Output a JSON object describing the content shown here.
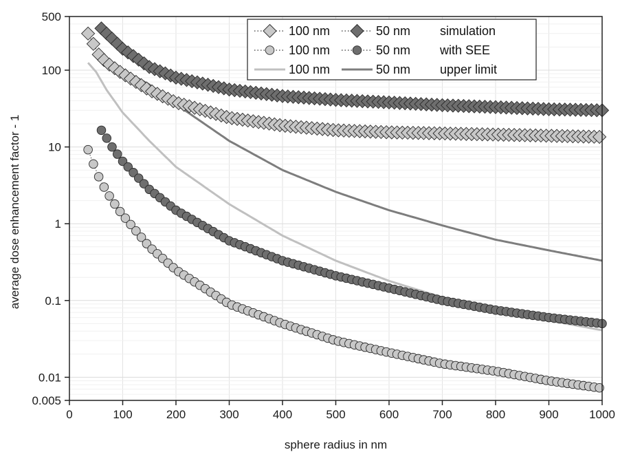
{
  "chart_data": {
    "type": "scatter",
    "xlabel": "sphere radius in nm",
    "ylabel": "average dose enhancement factor - 1",
    "xlim": [
      0,
      1000
    ],
    "ylim": [
      0.005,
      500
    ],
    "yscale": "log",
    "x_ticks": [
      0,
      100,
      200,
      300,
      400,
      500,
      600,
      700,
      800,
      900,
      1000
    ],
    "y_ticks": [
      0.005,
      0.01,
      0.1,
      1,
      10,
      100,
      500
    ],
    "y_tick_labels": [
      "0.005",
      "0.01",
      "0.1",
      "1",
      "10",
      "100",
      "500"
    ],
    "grid": true,
    "legend_position": "top-right",
    "legend_groups": [
      "simulation",
      "with SEE",
      "upper limit"
    ],
    "series": [
      {
        "name": "100 nm",
        "group": "simulation",
        "marker": "diamond",
        "style": "dotted-markers",
        "color": "#c8c8c8",
        "x_start": 35,
        "x_step": 10,
        "x_end": 1000,
        "anchors": [
          [
            35,
            300
          ],
          [
            45,
            220
          ],
          [
            55,
            160
          ],
          [
            70,
            125
          ],
          [
            100,
            90
          ],
          [
            150,
            55
          ],
          [
            200,
            38
          ],
          [
            300,
            24
          ],
          [
            400,
            19
          ],
          [
            500,
            16.5
          ],
          [
            600,
            15.5
          ],
          [
            700,
            15
          ],
          [
            800,
            14.5
          ],
          [
            900,
            14
          ],
          [
            1000,
            13.5
          ]
        ]
      },
      {
        "name": "50 nm",
        "group": "simulation",
        "marker": "diamond",
        "style": "dotted-markers",
        "color": "#6e6e6e",
        "x_start": 60,
        "x_step": 10,
        "x_end": 1000,
        "anchors": [
          [
            60,
            350
          ],
          [
            100,
            190
          ],
          [
            150,
            110
          ],
          [
            200,
            80
          ],
          [
            300,
            56
          ],
          [
            400,
            46
          ],
          [
            500,
            41
          ],
          [
            600,
            38
          ],
          [
            700,
            35
          ],
          [
            800,
            33
          ],
          [
            900,
            31
          ],
          [
            1000,
            30
          ]
        ]
      },
      {
        "name": "100 nm",
        "group": "with SEE",
        "marker": "circle",
        "style": "dotted-markers",
        "color": "#c8c8c8",
        "x_start": 35,
        "x_step": 10,
        "x_end": 1000,
        "anchors": [
          [
            35,
            9.2
          ],
          [
            45,
            6
          ],
          [
            55,
            4.1
          ],
          [
            65,
            3
          ],
          [
            75,
            2.3
          ],
          [
            90,
            1.6
          ],
          [
            100,
            1.3
          ],
          [
            150,
            0.5
          ],
          [
            200,
            0.25
          ],
          [
            300,
            0.09
          ],
          [
            400,
            0.05
          ],
          [
            500,
            0.03
          ],
          [
            600,
            0.021
          ],
          [
            700,
            0.015
          ],
          [
            800,
            0.012
          ],
          [
            900,
            0.009
          ],
          [
            1000,
            0.0072
          ]
        ]
      },
      {
        "name": "50 nm",
        "group": "with SEE",
        "marker": "circle",
        "style": "dotted-markers",
        "color": "#6e6e6e",
        "x_start": 60,
        "x_step": 10,
        "x_end": 1000,
        "anchors": [
          [
            60,
            16.5
          ],
          [
            70,
            13
          ],
          [
            80,
            10
          ],
          [
            100,
            6.5
          ],
          [
            150,
            2.8
          ],
          [
            200,
            1.5
          ],
          [
            300,
            0.6
          ],
          [
            400,
            0.33
          ],
          [
            500,
            0.21
          ],
          [
            600,
            0.145
          ],
          [
            700,
            0.1
          ],
          [
            800,
            0.075
          ],
          [
            900,
            0.06
          ],
          [
            1000,
            0.05
          ]
        ]
      },
      {
        "name": "100 nm",
        "group": "upper limit",
        "marker": "none",
        "style": "line",
        "color": "#c0c0c0",
        "x_start": 35,
        "x_step": 5,
        "x_end": 1000,
        "anchors": [
          [
            35,
            125
          ],
          [
            50,
            95
          ],
          [
            70,
            55
          ],
          [
            100,
            28
          ],
          [
            150,
            12
          ],
          [
            200,
            5.5
          ],
          [
            300,
            1.8
          ],
          [
            400,
            0.7
          ],
          [
            500,
            0.33
          ],
          [
            600,
            0.18
          ],
          [
            700,
            0.11
          ],
          [
            800,
            0.075
          ],
          [
            900,
            0.055
          ],
          [
            1000,
            0.041
          ]
        ]
      },
      {
        "name": "50 nm",
        "group": "upper limit",
        "marker": "none",
        "style": "line",
        "color": "#7d7d7d",
        "x_start": 60,
        "x_step": 5,
        "x_end": 1000,
        "anchors": [
          [
            60,
            145
          ],
          [
            100,
            100
          ],
          [
            150,
            65
          ],
          [
            200,
            36
          ],
          [
            300,
            12
          ],
          [
            400,
            5
          ],
          [
            500,
            2.6
          ],
          [
            600,
            1.5
          ],
          [
            700,
            0.95
          ],
          [
            800,
            0.62
          ],
          [
            900,
            0.45
          ],
          [
            1000,
            0.33
          ]
        ]
      }
    ]
  }
}
